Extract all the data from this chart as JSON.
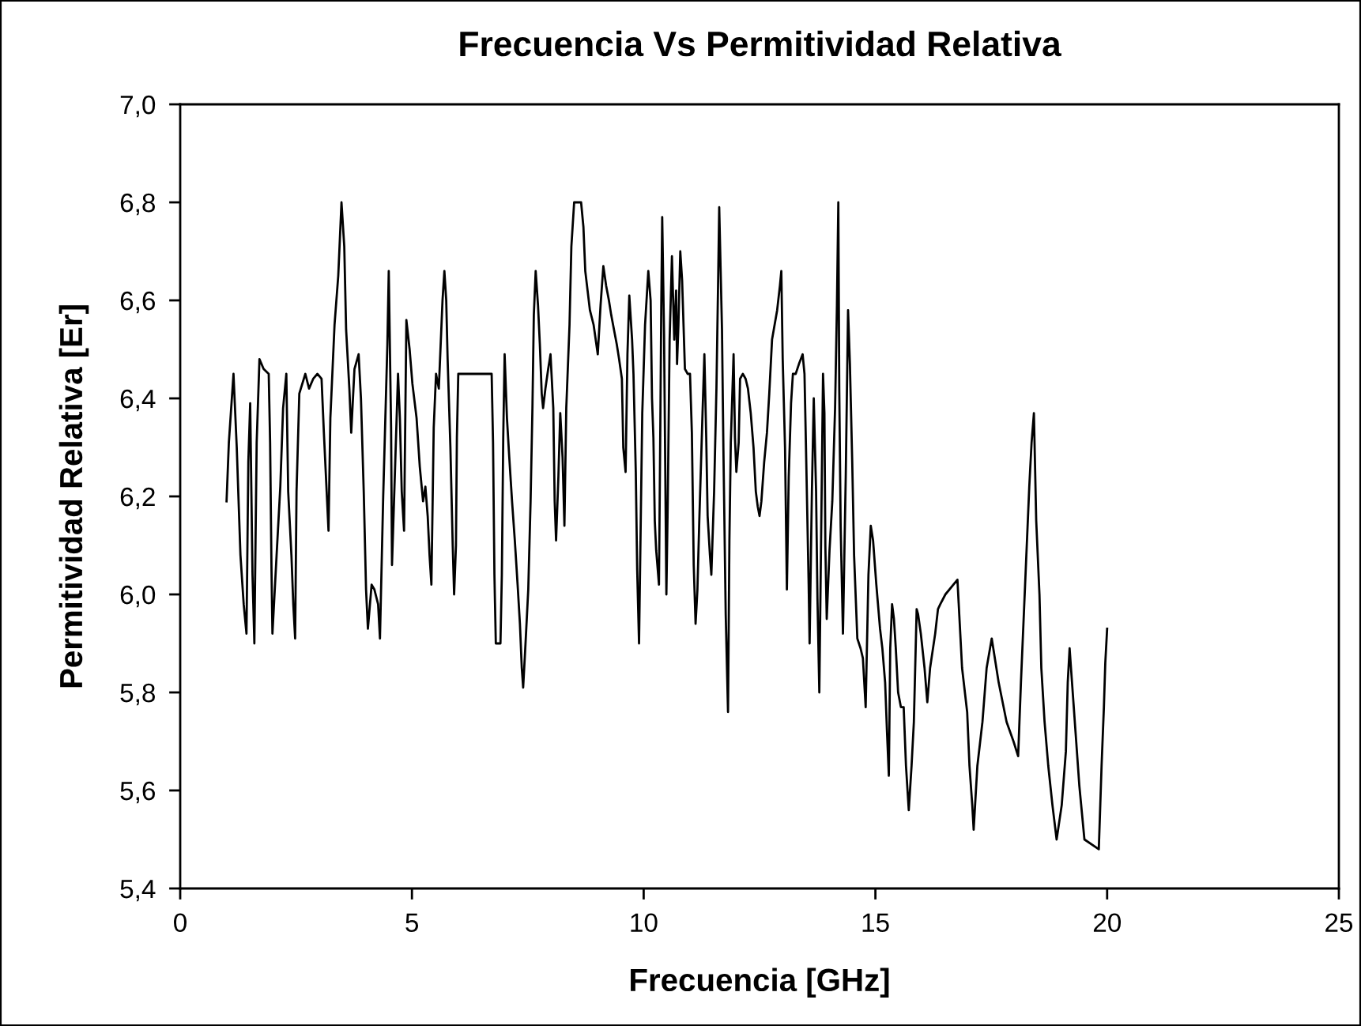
{
  "chart_data": {
    "type": "line",
    "title": "Frecuencia Vs Permitividad Relativa",
    "xlabel": "Frecuencia [GHz]",
    "ylabel": "Permitividad Relativa [Er]",
    "xlim": [
      0,
      25
    ],
    "xticks": [
      0,
      5,
      10,
      15,
      20,
      25
    ],
    "ylim": [
      5.4,
      7.0
    ],
    "yticks": [
      {
        "value": 5.4,
        "label": "5,4"
      },
      {
        "value": 5.6,
        "label": "5,6"
      },
      {
        "value": 5.8,
        "label": "5,8"
      },
      {
        "value": 6.0,
        "label": "6,0"
      },
      {
        "value": 6.2,
        "label": "6,2"
      },
      {
        "value": 6.4,
        "label": "6,4"
      },
      {
        "value": 6.6,
        "label": "6,6"
      },
      {
        "value": 6.8,
        "label": "6,8"
      },
      {
        "value": 7.0,
        "label": "7,0"
      }
    ],
    "grid": false,
    "series": [
      {
        "color": "#000000",
        "x": [
          1.0,
          1.05,
          1.15,
          1.22,
          1.3,
          1.37,
          1.43,
          1.47,
          1.51,
          1.56,
          1.6,
          1.65,
          1.71,
          1.8,
          1.91,
          1.94,
          1.97,
          1.99,
          2.08,
          2.16,
          2.22,
          2.29,
          2.33,
          2.4,
          2.44,
          2.48,
          2.51,
          2.57,
          2.7,
          2.78,
          2.87,
          2.96,
          3.05,
          3.1,
          3.16,
          3.2,
          3.24,
          3.33,
          3.41,
          3.48,
          3.54,
          3.58,
          3.65,
          3.69,
          3.76,
          3.85,
          3.9,
          3.96,
          4.01,
          4.05,
          4.13,
          4.19,
          4.27,
          4.31,
          4.38,
          4.47,
          4.5,
          4.55,
          4.57,
          4.7,
          4.74,
          4.78,
          4.83,
          4.88,
          4.95,
          5.01,
          5.1,
          5.17,
          5.24,
          5.29,
          5.34,
          5.38,
          5.42,
          5.47,
          5.52,
          5.58,
          5.66,
          5.7,
          5.74,
          5.77,
          5.83,
          5.88,
          5.91,
          5.95,
          5.97,
          6.0,
          6.72,
          6.75,
          6.78,
          6.81,
          6.91,
          6.94,
          6.97,
          7.0,
          7.05,
          7.1,
          7.16,
          7.22,
          7.28,
          7.33,
          7.37,
          7.4,
          7.44,
          7.51,
          7.56,
          7.6,
          7.63,
          7.67,
          7.72,
          7.76,
          7.8,
          7.83,
          7.88,
          7.94,
          7.99,
          8.05,
          8.08,
          8.11,
          8.16,
          8.2,
          8.25,
          8.29,
          8.33,
          8.4,
          8.44,
          8.5,
          8.65,
          8.7,
          8.74,
          8.79,
          8.84,
          8.92,
          9.01,
          9.07,
          9.13,
          9.19,
          9.25,
          9.3,
          9.36,
          9.42,
          9.47,
          9.53,
          9.56,
          9.61,
          9.65,
          9.69,
          9.75,
          9.78,
          9.83,
          9.86,
          9.9,
          9.94,
          9.97,
          10.03,
          10.1,
          10.15,
          10.18,
          10.21,
          10.24,
          10.27,
          10.33,
          10.36,
          10.38,
          10.4,
          10.44,
          10.49,
          10.52,
          10.56,
          10.61,
          10.66,
          10.7,
          10.72,
          10.75,
          10.79,
          10.83,
          10.89,
          10.95,
          11.0,
          11.04,
          11.08,
          11.12,
          11.16,
          11.2,
          11.27,
          11.31,
          11.35,
          11.38,
          11.43,
          11.46,
          11.52,
          11.57,
          11.61,
          11.63,
          11.69,
          11.72,
          11.77,
          11.82,
          11.85,
          11.88,
          11.94,
          11.97,
          12.0,
          12.05,
          12.08,
          12.14,
          12.2,
          12.25,
          12.31,
          12.37,
          12.42,
          12.46,
          12.5,
          12.54,
          12.6,
          12.66,
          12.71,
          12.77,
          12.88,
          12.94,
          12.97,
          13.0,
          13.05,
          13.09,
          13.13,
          13.18,
          13.22,
          13.28,
          13.35,
          13.43,
          13.47,
          13.5,
          13.56,
          13.58,
          13.63,
          13.67,
          13.72,
          13.75,
          13.79,
          13.84,
          13.87,
          13.9,
          13.92,
          13.95,
          14.01,
          14.07,
          14.13,
          14.17,
          14.2,
          14.22,
          14.25,
          14.3,
          14.36,
          14.41,
          14.45,
          14.5,
          14.54,
          14.61,
          14.68,
          14.73,
          14.79,
          14.85,
          14.9,
          14.95,
          15.02,
          15.1,
          15.15,
          15.21,
          15.25,
          15.29,
          15.32,
          15.36,
          15.4,
          15.44,
          15.49,
          15.55,
          15.61,
          15.66,
          15.72,
          15.78,
          15.83,
          15.89,
          15.92,
          15.98,
          16.06,
          16.12,
          16.18,
          16.29,
          16.35,
          16.4,
          16.51,
          16.77,
          16.87,
          16.98,
          17.03,
          17.09,
          17.12,
          17.2,
          17.31,
          17.4,
          17.51,
          17.66,
          17.83,
          17.98,
          18.08,
          18.14,
          18.23,
          18.32,
          18.37,
          18.42,
          18.47,
          18.54,
          18.58,
          18.65,
          18.73,
          18.82,
          18.91,
          19.02,
          19.11,
          19.15,
          19.19,
          19.31,
          19.4,
          19.51,
          19.82,
          19.88,
          19.93,
          19.96,
          20.0
        ],
        "values": [
          6.19,
          6.31,
          6.45,
          6.3,
          6.08,
          5.98,
          5.92,
          6.27,
          6.39,
          6.04,
          5.9,
          6.31,
          6.48,
          6.46,
          6.45,
          6.31,
          6.05,
          5.92,
          6.08,
          6.22,
          6.38,
          6.45,
          6.21,
          6.08,
          5.98,
          5.91,
          6.21,
          6.41,
          6.45,
          6.42,
          6.44,
          6.45,
          6.44,
          6.33,
          6.21,
          6.13,
          6.36,
          6.55,
          6.65,
          6.8,
          6.71,
          6.54,
          6.42,
          6.33,
          6.46,
          6.49,
          6.4,
          6.21,
          6.01,
          5.93,
          6.02,
          6.01,
          5.98,
          5.91,
          6.2,
          6.51,
          6.66,
          6.34,
          6.06,
          6.45,
          6.36,
          6.21,
          6.13,
          6.56,
          6.5,
          6.43,
          6.36,
          6.26,
          6.19,
          6.22,
          6.16,
          6.08,
          6.02,
          6.34,
          6.45,
          6.42,
          6.6,
          6.66,
          6.6,
          6.48,
          6.3,
          6.1,
          6.0,
          6.1,
          6.32,
          6.45,
          6.45,
          6.31,
          6.04,
          5.9,
          5.9,
          6.04,
          6.32,
          6.49,
          6.36,
          6.28,
          6.19,
          6.11,
          6.02,
          5.94,
          5.85,
          5.81,
          5.88,
          6.01,
          6.19,
          6.38,
          6.57,
          6.66,
          6.59,
          6.51,
          6.41,
          6.38,
          6.42,
          6.46,
          6.49,
          6.38,
          6.19,
          6.11,
          6.24,
          6.37,
          6.28,
          6.14,
          6.38,
          6.55,
          6.71,
          6.8,
          6.8,
          6.75,
          6.66,
          6.62,
          6.58,
          6.55,
          6.49,
          6.59,
          6.67,
          6.63,
          6.6,
          6.57,
          6.54,
          6.51,
          6.48,
          6.44,
          6.3,
          6.25,
          6.49,
          6.61,
          6.52,
          6.45,
          6.25,
          6.05,
          5.9,
          6.17,
          6.37,
          6.55,
          6.66,
          6.6,
          6.4,
          6.32,
          6.15,
          6.09,
          6.02,
          6.35,
          6.59,
          6.77,
          6.53,
          6.0,
          6.19,
          6.52,
          6.69,
          6.52,
          6.62,
          6.47,
          6.55,
          6.7,
          6.64,
          6.46,
          6.45,
          6.45,
          6.33,
          6.06,
          5.94,
          6.01,
          6.15,
          6.37,
          6.49,
          6.32,
          6.16,
          6.08,
          6.04,
          6.21,
          6.42,
          6.66,
          6.79,
          6.54,
          6.3,
          5.96,
          5.76,
          6.11,
          6.31,
          6.49,
          6.32,
          6.25,
          6.31,
          6.44,
          6.45,
          6.44,
          6.42,
          6.37,
          6.3,
          6.21,
          6.18,
          6.16,
          6.19,
          6.27,
          6.33,
          6.41,
          6.52,
          6.58,
          6.63,
          6.66,
          6.48,
          6.3,
          6.01,
          6.24,
          6.39,
          6.45,
          6.45,
          6.47,
          6.49,
          6.45,
          6.31,
          6.02,
          5.9,
          6.21,
          6.4,
          6.21,
          5.99,
          5.8,
          6.21,
          6.45,
          6.37,
          6.1,
          5.95,
          6.09,
          6.19,
          6.38,
          6.59,
          6.8,
          6.42,
          6.14,
          5.92,
          6.24,
          6.58,
          6.47,
          6.27,
          6.08,
          5.91,
          5.89,
          5.87,
          5.77,
          6.04,
          6.14,
          6.11,
          6.02,
          5.93,
          5.89,
          5.82,
          5.72,
          5.63,
          5.89,
          5.98,
          5.95,
          5.89,
          5.8,
          5.77,
          5.77,
          5.65,
          5.56,
          5.65,
          5.74,
          5.97,
          5.96,
          5.92,
          5.85,
          5.78,
          5.85,
          5.92,
          5.97,
          5.98,
          6.0,
          6.03,
          5.85,
          5.76,
          5.65,
          5.57,
          5.52,
          5.65,
          5.74,
          5.85,
          5.91,
          5.82,
          5.74,
          5.7,
          5.67,
          5.82,
          6.02,
          6.22,
          6.31,
          6.37,
          6.15,
          6.0,
          5.85,
          5.74,
          5.65,
          5.57,
          5.5,
          5.57,
          5.68,
          5.82,
          5.89,
          5.73,
          5.61,
          5.5,
          5.48,
          5.65,
          5.77,
          5.86,
          5.93
        ]
      }
    ]
  }
}
